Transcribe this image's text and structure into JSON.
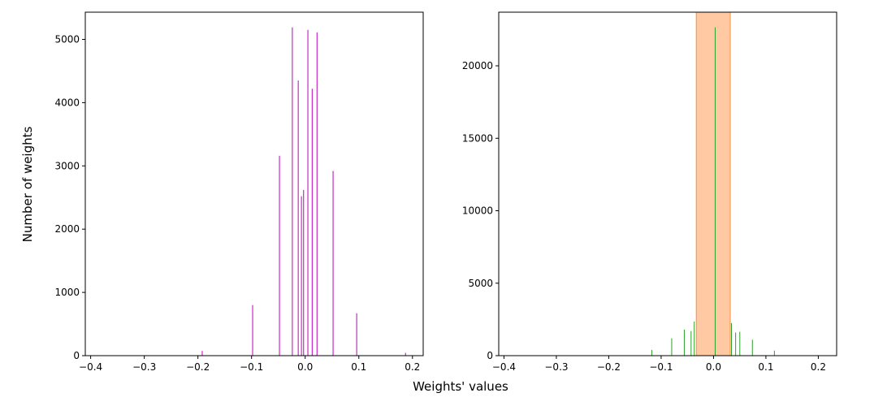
{
  "figure": {
    "xlabel": "Weights' values",
    "ylabel": "Number of weights"
  },
  "chart_data": [
    {
      "type": "bar",
      "xlim": [
        -0.41,
        0.22
      ],
      "ylim": [
        0,
        5430
      ],
      "xticks": [
        -0.4,
        -0.3,
        -0.2,
        -0.1,
        0.0,
        0.1,
        0.2
      ],
      "xtick_labels": [
        "−0.4",
        "−0.3",
        "−0.2",
        "−0.1",
        "0.0",
        "0.1",
        "0.2"
      ],
      "yticks": [
        0,
        1000,
        2000,
        3000,
        4000,
        5000
      ],
      "ytick_labels": [
        "0",
        "1000",
        "2000",
        "3000",
        "4000",
        "5000"
      ],
      "bar_color": "#bf00bf",
      "bar_width": 0.0015,
      "bars": [
        {
          "x": -0.192,
          "y": 75
        },
        {
          "x": -0.098,
          "y": 800
        },
        {
          "x": -0.048,
          "y": 3160
        },
        {
          "x": -0.024,
          "y": 5190
        },
        {
          "x": -0.013,
          "y": 4350
        },
        {
          "x": -0.007,
          "y": 2520
        },
        {
          "x": -0.003,
          "y": 2620
        },
        {
          "x": 0.005,
          "y": 5150
        },
        {
          "x": 0.013,
          "y": 4220
        },
        {
          "x": 0.022,
          "y": 5110
        },
        {
          "x": 0.052,
          "y": 2920
        },
        {
          "x": 0.096,
          "y": 670
        },
        {
          "x": 0.187,
          "y": 45
        }
      ]
    },
    {
      "type": "bar",
      "xlim": [
        -0.41,
        0.235
      ],
      "ylim": [
        0,
        23700
      ],
      "xticks": [
        -0.4,
        -0.3,
        -0.2,
        -0.1,
        0.0,
        0.1,
        0.2
      ],
      "xtick_labels": [
        "−0.4",
        "−0.3",
        "−0.2",
        "−0.1",
        "0.0",
        "0.1",
        "0.2"
      ],
      "yticks": [
        0,
        5000,
        10000,
        15000,
        20000
      ],
      "ytick_labels": [
        "0",
        "5000",
        "10000",
        "15000",
        "20000"
      ],
      "bar_color": "#2ca02c",
      "bar_width": 0.0012,
      "highlight_span": {
        "x0": -0.033,
        "x1": 0.032,
        "color": "#ffc9a3",
        "edge": "#ff7f0e"
      },
      "bars": [
        {
          "x": -0.118,
          "y": 400
        },
        {
          "x": -0.08,
          "y": 1200
        },
        {
          "x": -0.056,
          "y": 1800
        },
        {
          "x": -0.043,
          "y": 1700
        },
        {
          "x": -0.037,
          "y": 2350
        },
        {
          "x": 0.003,
          "y": 22650
        },
        {
          "x": 0.034,
          "y": 2250
        },
        {
          "x": 0.042,
          "y": 1600
        },
        {
          "x": 0.05,
          "y": 1650
        },
        {
          "x": 0.074,
          "y": 1100
        },
        {
          "x": 0.116,
          "y": 350
        }
      ]
    }
  ]
}
